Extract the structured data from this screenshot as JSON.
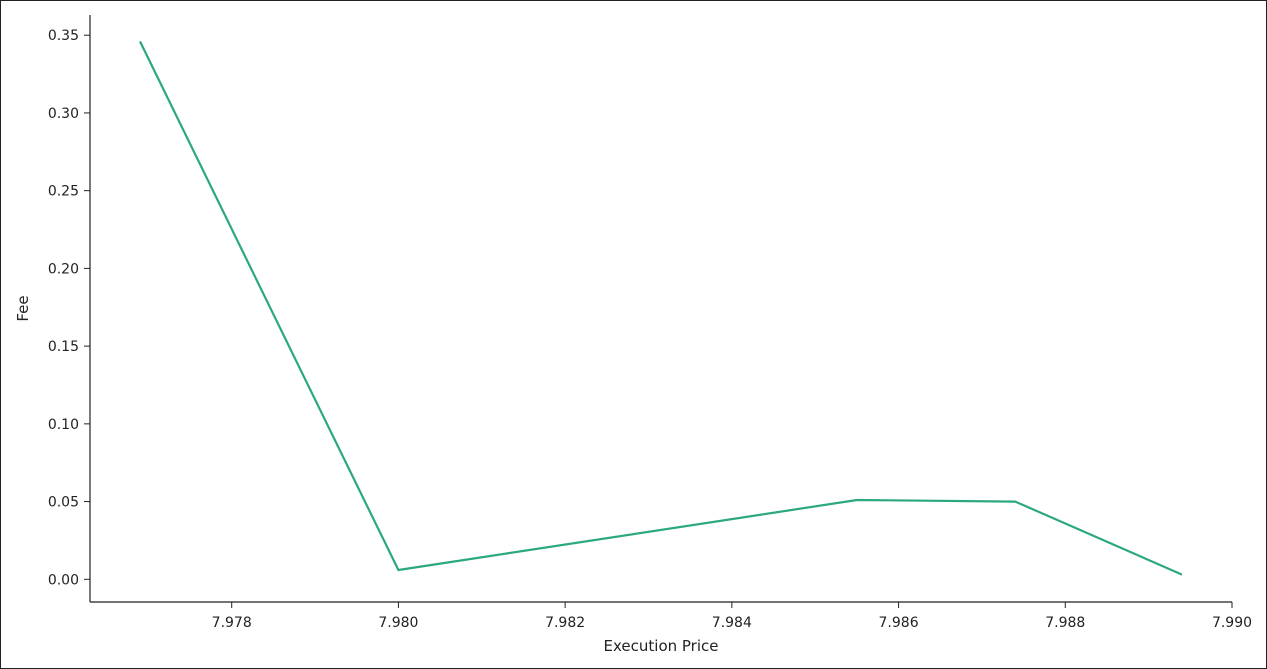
{
  "chart_data": {
    "type": "line",
    "title": "",
    "xlabel": "Execution Price",
    "ylabel": "Fee",
    "xlim": [
      7.9763,
      7.99
    ],
    "ylim": [
      -0.0146,
      0.363
    ],
    "xticks": [
      "7.978",
      "7.980",
      "7.982",
      "7.984",
      "7.986",
      "7.988",
      "7.990"
    ],
    "yticks": [
      "0.00",
      "0.05",
      "0.10",
      "0.15",
      "0.20",
      "0.25",
      "0.30",
      "0.35"
    ],
    "grid": false,
    "line_color": "#2ca87f",
    "series": [
      {
        "x": [
          7.9769,
          7.98,
          7.9855,
          7.9874,
          7.9894
        ],
        "y": [
          0.346,
          0.006,
          0.051,
          0.05,
          0.003
        ]
      }
    ]
  }
}
